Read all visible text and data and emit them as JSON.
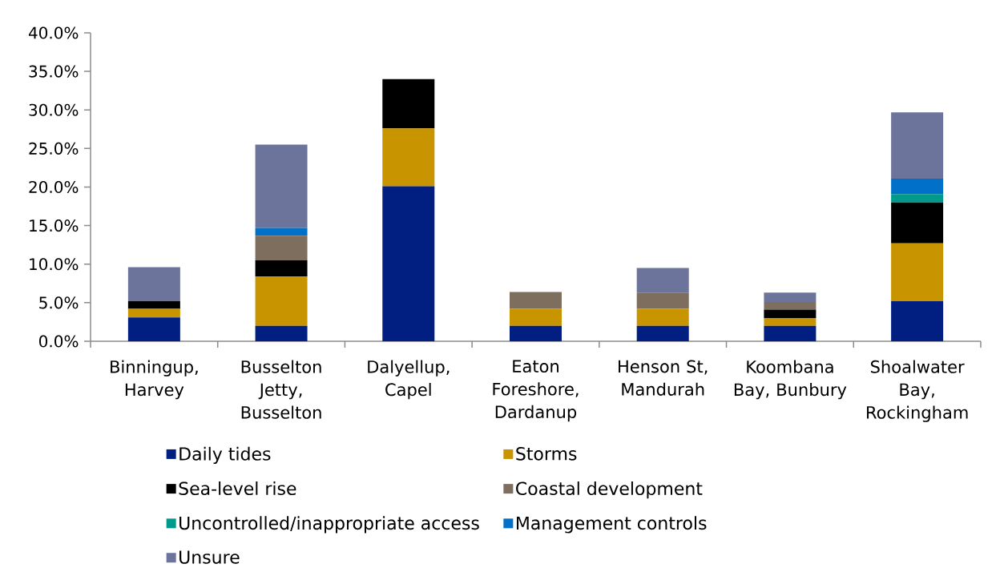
{
  "chart_data": {
    "type": "bar",
    "stacked": true,
    "categories": [
      "Binningup, Harvey",
      "Busselton Jetty, Busselton",
      "Dalyellup, Capel",
      "Eaton Foreshore, Dardanup",
      "Henson St, Mandurah",
      "Koombana Bay, Bunbury",
      "Shoalwater Bay, Rockingham"
    ],
    "series": [
      {
        "name": "Daily tides",
        "color": "#001f80",
        "values": [
          3.1,
          2.0,
          20.1,
          2.0,
          2.0,
          2.0,
          5.2
        ]
      },
      {
        "name": "Storms",
        "color": "#c89400",
        "values": [
          1.1,
          6.4,
          7.5,
          2.2,
          2.2,
          1.0,
          7.5
        ]
      },
      {
        "name": "Sea-level rise",
        "color": "#000000",
        "values": [
          1.0,
          2.1,
          6.4,
          0,
          0,
          1.1,
          5.3
        ]
      },
      {
        "name": "Coastal development",
        "color": "#7e6e5e",
        "values": [
          0,
          3.2,
          0,
          2.2,
          2.1,
          1.0,
          0
        ]
      },
      {
        "name": "Uncontrolled/inappropriate access",
        "color": "#009a8c",
        "values": [
          0,
          0,
          0,
          0,
          0,
          0,
          1.1
        ]
      },
      {
        "name": "Management controls",
        "color": "#0070c8",
        "values": [
          0,
          1.0,
          0,
          0,
          0,
          0,
          2.0
        ]
      },
      {
        "name": "Unsure",
        "color": "#6c749c",
        "values": [
          4.4,
          10.8,
          0,
          0,
          3.2,
          1.2,
          8.6
        ]
      }
    ],
    "ylim": [
      0,
      40
    ],
    "yticks": [
      {
        "value": 0,
        "label": "0.0%"
      },
      {
        "value": 5,
        "label": "5.0%"
      },
      {
        "value": 10,
        "label": "10.0%"
      },
      {
        "value": 15,
        "label": "15.0%"
      },
      {
        "value": 20,
        "label": "20.0%"
      },
      {
        "value": 25,
        "label": "25.0%"
      },
      {
        "value": 30,
        "label": "30.0%"
      },
      {
        "value": 35,
        "label": "35.0%"
      },
      {
        "value": 40,
        "label": "40.0%"
      }
    ],
    "legend": "bottom"
  }
}
